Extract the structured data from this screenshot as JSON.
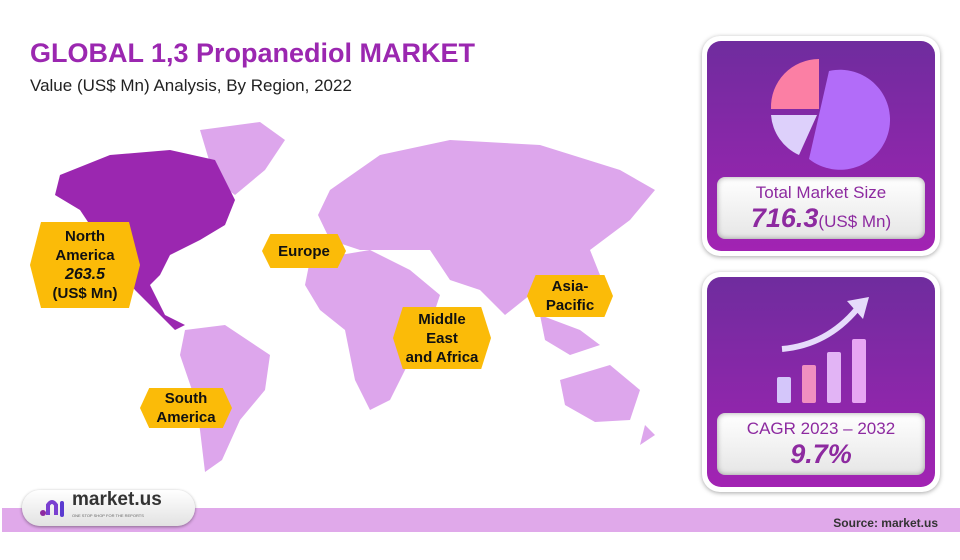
{
  "header": {
    "title": "GLOBAL 1,3 Propanediol MARKET",
    "subtitle": "Value (US$ Mn) Analysis, By Region, 2022"
  },
  "chart_data": {
    "type": "map",
    "title": "GLOBAL 1,3 Propanediol MARKET",
    "subtitle": "Value (US$ Mn) Analysis, By Region, 2022",
    "regions": [
      {
        "name": "North America",
        "value": 263.5,
        "unit": "(US$ Mn)",
        "highlighted": true
      },
      {
        "name": "Europe"
      },
      {
        "name": "Asia-Pacific"
      },
      {
        "name": "Middle East and Africa"
      },
      {
        "name": "South America"
      }
    ],
    "colors": {
      "highlight": "#9b27b0",
      "other": "#dda6ec",
      "label": "#fbbb08"
    }
  },
  "labels": {
    "na1": "North",
    "na2": "America",
    "na_value": "263.5",
    "na_unit": "(US$ Mn)",
    "eu": "Europe",
    "ap1": "Asia-",
    "ap2": "Pacific",
    "mea1": "Middle",
    "mea2": "East",
    "mea3": "and Africa",
    "sa1": "South",
    "sa2": "America"
  },
  "cards": {
    "total_label": "Total Market Size",
    "total_value": "716.3",
    "total_unit": "(US$ Mn)",
    "cagr_label": "CAGR 2023 – 2032",
    "cagr_value": "9.7%"
  },
  "footer": {
    "logo": "market.us",
    "tagline": "ONE STOP SHOP FOR THE REPORTS",
    "source": "Source: market.us"
  }
}
